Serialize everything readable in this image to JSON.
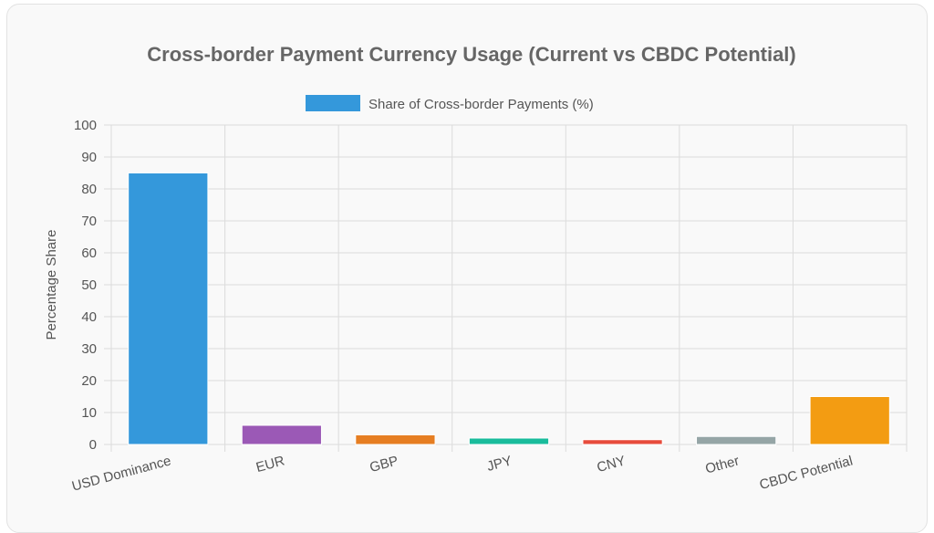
{
  "chart_data": {
    "type": "bar",
    "title": "Cross-border Payment Currency Usage (Current vs CBDC Potential)",
    "ylabel": "Percentage Share",
    "xlabel": "",
    "ylim": [
      0,
      100
    ],
    "y_ticks": [
      0,
      10,
      20,
      30,
      40,
      50,
      60,
      70,
      80,
      90,
      100
    ],
    "grid": true,
    "legend_position": "top-center",
    "categories": [
      "USD Dominance",
      "EUR",
      "GBP",
      "JPY",
      "CNY",
      "Other",
      "CBDC Potential"
    ],
    "series": [
      {
        "name": "Share of Cross-border Payments (%)",
        "values": [
          85,
          6,
          3,
          2,
          1.5,
          2.5,
          15
        ],
        "colors": [
          "#3498db",
          "#9b59b6",
          "#e67e22",
          "#1abc9c",
          "#e74c3c",
          "#95a5a6",
          "#f39c12"
        ]
      }
    ],
    "legend_color": "#3498db"
  }
}
